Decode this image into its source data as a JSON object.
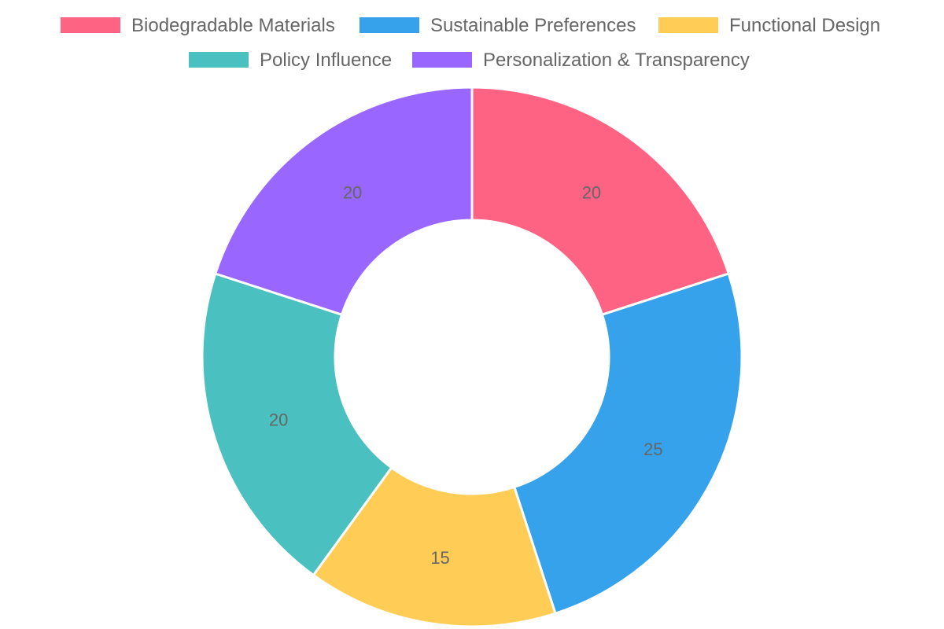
{
  "chart_data": {
    "type": "doughnut",
    "categories": [
      "Biodegradable Materials",
      "Sustainable Preferences",
      "Functional Design",
      "Policy Influence",
      "Personalization & Transparency"
    ],
    "values": [
      20,
      25,
      15,
      20,
      20
    ],
    "data_labels": [
      "20",
      "25",
      "15",
      "20",
      "20"
    ],
    "colors": [
      "#ff6384",
      "#36a2eb",
      "#ffcd56",
      "#4bc0c0",
      "#9966ff"
    ],
    "legend": {
      "position": "top",
      "entries": [
        "Biodegradable Materials",
        "Sustainable Preferences",
        "Functional Design",
        "Policy Influence",
        "Personalization & Transparency"
      ]
    },
    "grid": false
  }
}
